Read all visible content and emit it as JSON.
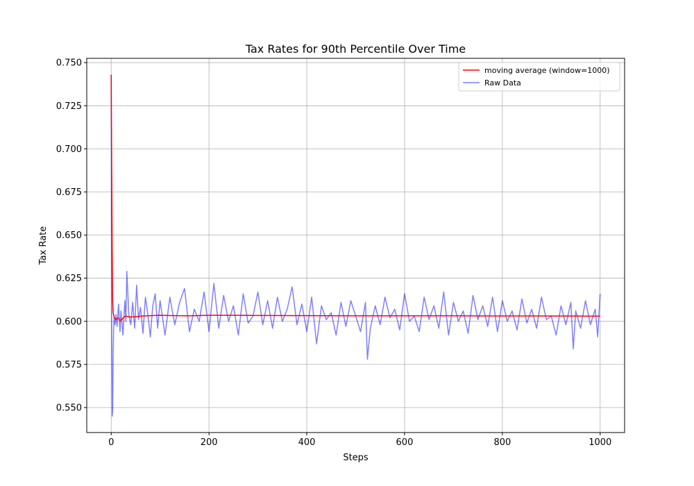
{
  "chart_data": {
    "type": "line",
    "title": "Tax Rates for 90th Percentile Over Time",
    "xlabel": "Steps",
    "ylabel": "Tax Rate",
    "xlim": [
      -50,
      1050
    ],
    "ylim": [
      0.5355,
      0.7525
    ],
    "xticks": [
      0,
      200,
      400,
      600,
      800,
      1000
    ],
    "xtick_labels": [
      "0",
      "200",
      "400",
      "600",
      "800",
      "1000"
    ],
    "yticks": [
      0.55,
      0.575,
      0.6,
      0.625,
      0.65,
      0.675,
      0.7,
      0.725,
      0.75
    ],
    "ytick_labels": [
      "0.550",
      "0.575",
      "0.600",
      "0.625",
      "0.650",
      "0.675",
      "0.700",
      "0.725",
      "0.750"
    ],
    "grid": true,
    "legend_position": "top-right",
    "series": [
      {
        "name": "moving average (window=1000)",
        "color": "#ff0000",
        "x": [
          0,
          1,
          2,
          3,
          4,
          6,
          8,
          10,
          14,
          18,
          22,
          26,
          30,
          40,
          50,
          60,
          80,
          100,
          130,
          160,
          200,
          250,
          300,
          400,
          500,
          600,
          700,
          800,
          900,
          1000
        ],
        "y": [
          0.743,
          0.69,
          0.64,
          0.612,
          0.605,
          0.6025,
          0.6015,
          0.601,
          0.602,
          0.6005,
          0.601,
          0.6025,
          0.603,
          0.6025,
          0.6027,
          0.603,
          0.6033,
          0.6035,
          0.6033,
          0.6032,
          0.6035,
          0.6035,
          0.6034,
          0.6033,
          0.6032,
          0.6032,
          0.6032,
          0.6031,
          0.6031,
          0.603
        ]
      },
      {
        "name": "Raw Data",
        "color": "#0000ff",
        "opacity": 0.5,
        "x": [
          0,
          1,
          2,
          3,
          4,
          5,
          6,
          8,
          10,
          12,
          15,
          18,
          20,
          24,
          28,
          30,
          32,
          36,
          40,
          44,
          48,
          52,
          56,
          60,
          65,
          70,
          75,
          80,
          85,
          90,
          95,
          100,
          110,
          120,
          130,
          140,
          150,
          160,
          170,
          180,
          190,
          200,
          210,
          220,
          230,
          240,
          250,
          260,
          270,
          280,
          290,
          300,
          310,
          320,
          330,
          340,
          350,
          360,
          370,
          380,
          390,
          400,
          410,
          420,
          430,
          440,
          450,
          460,
          470,
          480,
          490,
          500,
          510,
          520,
          524,
          530,
          540,
          550,
          560,
          570,
          580,
          590,
          600,
          610,
          620,
          630,
          640,
          650,
          660,
          670,
          680,
          690,
          700,
          710,
          720,
          730,
          740,
          750,
          760,
          770,
          780,
          790,
          800,
          810,
          820,
          830,
          840,
          850,
          860,
          870,
          880,
          890,
          900,
          910,
          920,
          930,
          940,
          945,
          950,
          960,
          970,
          980,
          990,
          995,
          1000
        ],
        "y": [
          0.743,
          0.6,
          0.545,
          0.548,
          0.58,
          0.596,
          0.603,
          0.598,
          0.604,
          0.597,
          0.61,
          0.594,
          0.606,
          0.592,
          0.612,
          0.6,
          0.629,
          0.604,
          0.598,
          0.611,
          0.596,
          0.621,
          0.601,
          0.608,
          0.593,
          0.614,
          0.604,
          0.591,
          0.609,
          0.616,
          0.596,
          0.612,
          0.592,
          0.614,
          0.598,
          0.611,
          0.619,
          0.594,
          0.607,
          0.6,
          0.617,
          0.594,
          0.622,
          0.596,
          0.615,
          0.6,
          0.609,
          0.592,
          0.616,
          0.599,
          0.603,
          0.617,
          0.598,
          0.612,
          0.596,
          0.614,
          0.6,
          0.607,
          0.62,
          0.598,
          0.61,
          0.594,
          0.614,
          0.587,
          0.609,
          0.601,
          0.605,
          0.592,
          0.611,
          0.597,
          0.612,
          0.603,
          0.594,
          0.611,
          0.578,
          0.596,
          0.609,
          0.598,
          0.614,
          0.602,
          0.607,
          0.595,
          0.616,
          0.6,
          0.603,
          0.594,
          0.614,
          0.601,
          0.609,
          0.596,
          0.617,
          0.592,
          0.611,
          0.6,
          0.606,
          0.593,
          0.615,
          0.601,
          0.609,
          0.597,
          0.614,
          0.594,
          0.612,
          0.6,
          0.606,
          0.595,
          0.613,
          0.599,
          0.607,
          0.596,
          0.614,
          0.601,
          0.603,
          0.592,
          0.609,
          0.598,
          0.611,
          0.584,
          0.606,
          0.596,
          0.612,
          0.598,
          0.607,
          0.591,
          0.616
        ]
      }
    ]
  }
}
